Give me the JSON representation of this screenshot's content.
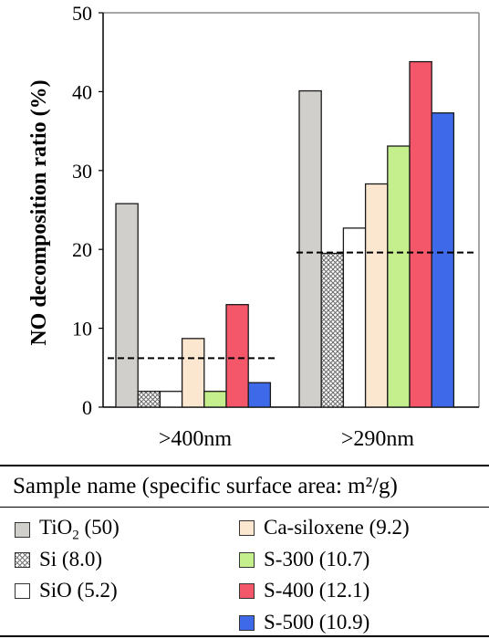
{
  "chart_data": {
    "type": "bar",
    "ylabel": "NO decomposition ratio (%)",
    "xlabel": "",
    "ylim": [
      0,
      50
    ],
    "yticks": [
      "0",
      "10",
      "20",
      "30",
      "40",
      "50"
    ],
    "categories": [
      ">400nm",
      ">290nm"
    ],
    "series": [
      {
        "name": "TiO2 (50)",
        "values": [
          25.8,
          40.1
        ],
        "color": "#d0cfcb",
        "pattern": "solid"
      },
      {
        "name": "Si (8.0)",
        "values": [
          2.0,
          19.5
        ],
        "color": "#ffffff",
        "pattern": "crosshatch"
      },
      {
        "name": "SiO (5.2)",
        "values": [
          2.0,
          22.7
        ],
        "color": "#ffffff",
        "pattern": "solid"
      },
      {
        "name": "Ca-siloxene (9.2)",
        "values": [
          8.7,
          28.3
        ],
        "color": "#fbe6cf",
        "pattern": "solid"
      },
      {
        "name": "S-300 (10.7)",
        "values": [
          2.0,
          33.1
        ],
        "color": "#c5ef8d",
        "pattern": "solid"
      },
      {
        "name": "S-400 (12.1)",
        "values": [
          13.0,
          43.8
        ],
        "color": "#f4566a",
        "pattern": "solid"
      },
      {
        "name": "S-500 (10.9)",
        "values": [
          3.1,
          37.3
        ],
        "color": "#3e69e8",
        "pattern": "solid"
      }
    ],
    "reference_lines": [
      6.2,
      19.6
    ],
    "grid": false,
    "legend": {
      "title": "Sample name (specific surface area: m²/g)",
      "entries": [
        {
          "before": "TiO",
          "sub": "2",
          "after": " (50)"
        },
        {
          "before": "Si (8.0)",
          "sub": "",
          "after": ""
        },
        {
          "before": "SiO (5.2)",
          "sub": "",
          "after": ""
        },
        {
          "before": "Ca-siloxene (9.2)",
          "sub": "",
          "after": ""
        },
        {
          "before": "S-300 (10.7)",
          "sub": "",
          "after": ""
        },
        {
          "before": "S-400 (12.1)",
          "sub": "",
          "after": ""
        },
        {
          "before": "S-500 (10.9)",
          "sub": "",
          "after": ""
        }
      ],
      "placement": "bottom"
    }
  }
}
